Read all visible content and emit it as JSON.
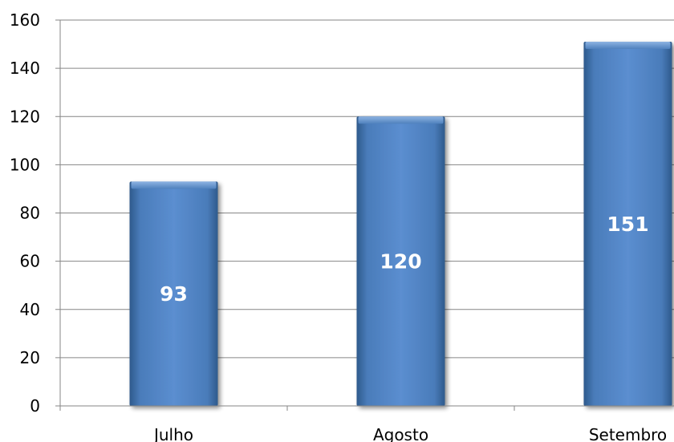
{
  "chart_data": {
    "type": "bar",
    "categories": [
      "Julho",
      "Agosto",
      "Setembro"
    ],
    "values": [
      93,
      120,
      151
    ],
    "value_labels": [
      "93",
      "120",
      "151"
    ],
    "ylim": [
      0,
      160
    ],
    "y_ticks": [
      0,
      20,
      40,
      60,
      80,
      100,
      120,
      140,
      160
    ],
    "title": "",
    "xlabel": "",
    "ylabel": "",
    "grid": true,
    "legend": "none",
    "bar_color": "#4F81BD",
    "bar_label_color": "#FFFFFF"
  }
}
